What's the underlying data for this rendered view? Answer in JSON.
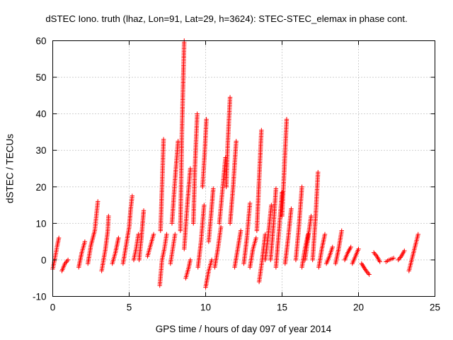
{
  "chart_data": {
    "type": "scatter",
    "title": "dSTEC Iono. truth (lhaz, Lon=91, Lat=29, h=3624): STEC-STEC_elemax in phase cont.",
    "xlabel": "GPS time / hours of day 097 of year 2014",
    "ylabel": "dSTEC  / TECUs",
    "xlim": [
      0,
      25
    ],
    "ylim": [
      -10,
      60
    ],
    "x_ticks": [
      0,
      5,
      10,
      15,
      20,
      25
    ],
    "y_ticks": [
      -10,
      0,
      10,
      20,
      30,
      40,
      50,
      60
    ],
    "x_tick_labels": [
      "0",
      "5",
      "10",
      "15",
      "20",
      "25"
    ],
    "y_tick_labels": [
      "-10",
      "0",
      "10",
      "20",
      "30",
      "40",
      "50",
      "60"
    ],
    "grid": true,
    "marker": "plus",
    "color": "#ff0000",
    "arcs": [
      {
        "x": [
          0.0,
          0.15,
          0.3,
          0.4
        ],
        "y": [
          -2.5,
          0.5,
          4,
          6
        ]
      },
      {
        "x": [
          0.6,
          0.8,
          1.0
        ],
        "y": [
          -3,
          -1,
          0
        ]
      },
      {
        "x": [
          1.7,
          1.9,
          2.1
        ],
        "y": [
          -2,
          2,
          5
        ]
      },
      {
        "x": [
          2.3,
          2.5,
          2.75,
          2.85,
          2.95
        ],
        "y": [
          -1,
          4,
          8,
          12,
          16
        ]
      },
      {
        "x": [
          3.2,
          3.45,
          3.6,
          3.65
        ],
        "y": [
          -3,
          3,
          8,
          12
        ]
      },
      {
        "x": [
          3.9,
          4.1,
          4.3
        ],
        "y": [
          -1,
          2,
          6
        ]
      },
      {
        "x": [
          4.6,
          4.8,
          5.0,
          5.1,
          5.2
        ],
        "y": [
          -1,
          4,
          9,
          14,
          17.5
        ]
      },
      {
        "x": [
          5.3,
          5.45,
          5.6
        ],
        "y": [
          0,
          3,
          7
        ]
      },
      {
        "x": [
          5.65,
          5.8,
          5.95
        ],
        "y": [
          0,
          6,
          13.5
        ]
      },
      {
        "x": [
          6.2,
          6.4,
          6.6
        ],
        "y": [
          1,
          4,
          7
        ]
      },
      {
        "x": [
          7.0,
          7.15,
          7.3,
          7.45
        ],
        "y": [
          -7,
          0,
          3,
          7
        ]
      },
      {
        "x": [
          7.05,
          7.15,
          7.25
        ],
        "y": [
          8,
          20,
          33
        ]
      },
      {
        "x": [
          7.7,
          7.85,
          8.0
        ],
        "y": [
          -1,
          3,
          7
        ]
      },
      {
        "x": [
          7.8,
          8.0,
          8.2
        ],
        "y": [
          10,
          22,
          32.5
        ]
      },
      {
        "x": [
          8.35,
          8.45,
          8.6
        ],
        "y": [
          8,
          35,
          60
        ]
      },
      {
        "x": [
          8.6,
          8.8,
          9.0
        ],
        "y": [
          3,
          15,
          25
        ]
      },
      {
        "x": [
          8.7,
          8.9,
          9.0
        ],
        "y": [
          -5,
          -2,
          0
        ]
      },
      {
        "x": [
          9.2,
          9.3,
          9.45
        ],
        "y": [
          10,
          25,
          40
        ]
      },
      {
        "x": [
          9.5,
          9.7,
          9.9
        ],
        "y": [
          -2,
          5,
          15
        ]
      },
      {
        "x": [
          9.8,
          9.95,
          10.05
        ],
        "y": [
          20,
          30,
          38.5
        ]
      },
      {
        "x": [
          10.0,
          10.2,
          10.4
        ],
        "y": [
          -7.5,
          -3,
          0
        ]
      },
      {
        "x": [
          10.2,
          10.35,
          10.5
        ],
        "y": [
          5,
          12,
          19.5
        ]
      },
      {
        "x": [
          10.6,
          10.8,
          11.0
        ],
        "y": [
          -2,
          3,
          9
        ]
      },
      {
        "x": [
          10.9,
          11.1,
          11.3
        ],
        "y": [
          10,
          19,
          28
        ]
      },
      {
        "x": [
          11.35,
          11.45,
          11.6
        ],
        "y": [
          20,
          32,
          44.5
        ]
      },
      {
        "x": [
          11.6,
          11.8,
          12.0
        ],
        "y": [
          10,
          20,
          32.5
        ]
      },
      {
        "x": [
          11.9,
          12.1,
          12.3
        ],
        "y": [
          -2,
          3,
          8
        ]
      },
      {
        "x": [
          12.5,
          12.7,
          12.9
        ],
        "y": [
          -1,
          6,
          15.5
        ]
      },
      {
        "x": [
          12.9,
          13.1,
          13.3
        ],
        "y": [
          -2,
          3,
          6
        ]
      },
      {
        "x": [
          13.35,
          13.5,
          13.65
        ],
        "y": [
          8,
          22,
          35.5
        ]
      },
      {
        "x": [
          13.5,
          13.7,
          13.9
        ],
        "y": [
          -6,
          0,
          7
        ]
      },
      {
        "x": [
          13.9,
          14.1,
          14.3
        ],
        "y": [
          0,
          7,
          15
        ]
      },
      {
        "x": [
          14.25,
          14.45,
          14.6
        ],
        "y": [
          0,
          10,
          19.5
        ]
      },
      {
        "x": [
          14.6,
          14.8,
          15.0
        ],
        "y": [
          -2,
          8,
          18.5
        ]
      },
      {
        "x": [
          15.0,
          15.15,
          15.3
        ],
        "y": [
          12,
          25,
          38.5
        ]
      },
      {
        "x": [
          15.2,
          15.4,
          15.6
        ],
        "y": [
          -1,
          6,
          14
        ]
      },
      {
        "x": [
          15.9,
          16.1,
          16.3
        ],
        "y": [
          0,
          9,
          20
        ]
      },
      {
        "x": [
          16.3,
          16.5,
          16.7
        ],
        "y": [
          -2,
          3,
          7
        ]
      },
      {
        "x": [
          16.5,
          16.7,
          16.9
        ],
        "y": [
          0,
          6,
          12
        ]
      },
      {
        "x": [
          17.0,
          17.2,
          17.35
        ],
        "y": [
          0,
          12,
          24
        ]
      },
      {
        "x": [
          17.4,
          17.6,
          17.8
        ],
        "y": [
          -2,
          3,
          7
        ]
      },
      {
        "x": [
          17.9,
          18.1,
          18.3
        ],
        "y": [
          -1,
          1,
          3.5
        ]
      },
      {
        "x": [
          18.5,
          18.7,
          18.9
        ],
        "y": [
          -1,
          3,
          8
        ]
      },
      {
        "x": [
          19.1,
          19.3,
          19.5
        ],
        "y": [
          0,
          2,
          3.5
        ]
      },
      {
        "x": [
          19.6,
          19.8,
          20.0
        ],
        "y": [
          -1,
          1,
          3
        ]
      },
      {
        "x": [
          20.2,
          20.5,
          20.7
        ],
        "y": [
          -1,
          -3,
          -4
        ]
      },
      {
        "x": [
          21.0,
          21.2,
          21.4
        ],
        "y": [
          2,
          1,
          -0.5
        ]
      },
      {
        "x": [
          21.8,
          22.0,
          22.3
        ],
        "y": [
          -0.5,
          0,
          0.5
        ]
      },
      {
        "x": [
          22.6,
          22.8,
          23.0
        ],
        "y": [
          0,
          1,
          2.5
        ]
      },
      {
        "x": [
          23.3,
          23.6,
          23.9
        ],
        "y": [
          -3,
          2,
          7
        ]
      }
    ]
  }
}
